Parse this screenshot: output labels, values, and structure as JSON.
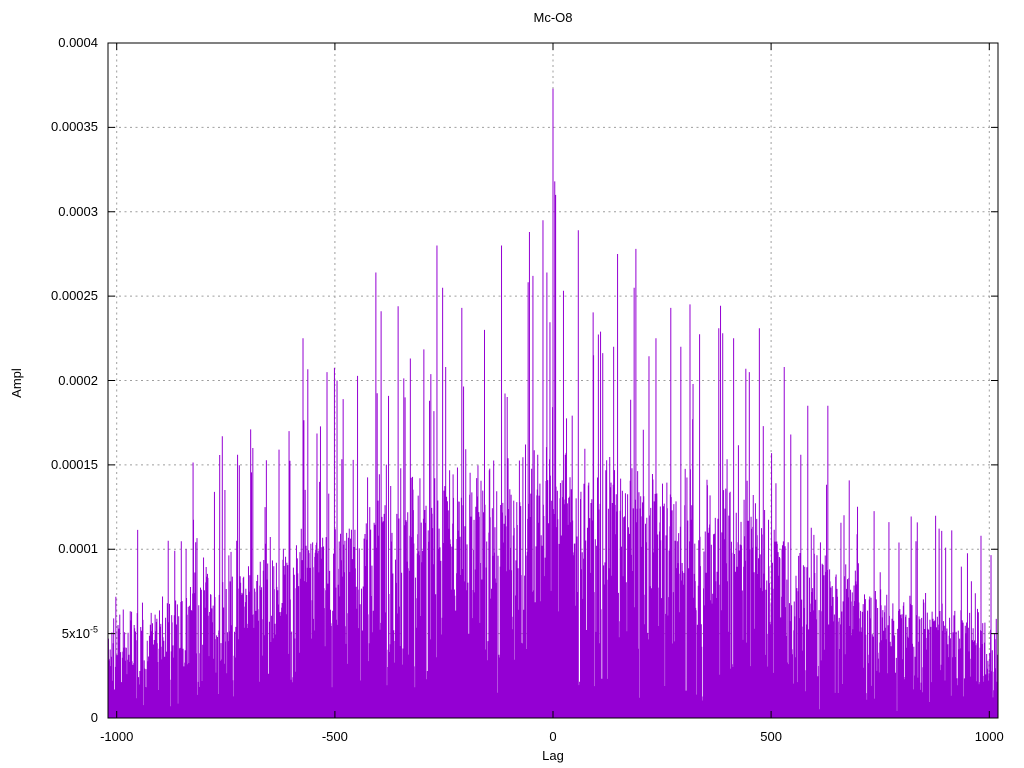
{
  "chart_data": {
    "type": "impulses",
    "title": "Mc-O8",
    "xlabel": "Lag",
    "ylabel": "Ampl",
    "xlim": [
      -1020,
      1020
    ],
    "ylim": [
      0,
      0.0004
    ],
    "grid": true,
    "legend": "none",
    "line_color": "#9400d3",
    "grid_color": "#9e9e9e",
    "frame_color": "#000000",
    "x_ticks": [
      {
        "value": -1000,
        "label": "-1000"
      },
      {
        "value": -500,
        "label": "-500"
      },
      {
        "value": 0,
        "label": "0"
      },
      {
        "value": 500,
        "label": "500"
      },
      {
        "value": 1000,
        "label": "1000"
      }
    ],
    "y_ticks": [
      {
        "value": 0,
        "label": "0"
      },
      {
        "value": 5e-05,
        "label": "5x10",
        "sup": "-5"
      },
      {
        "value": 0.0001,
        "label": "0.0001"
      },
      {
        "value": 0.00015,
        "label": "0.00015"
      },
      {
        "value": 0.0002,
        "label": "0.0002"
      },
      {
        "value": 0.00025,
        "label": "0.00025"
      },
      {
        "value": 0.0003,
        "label": "0.0003"
      },
      {
        "value": 0.00035,
        "label": "0.00035"
      },
      {
        "value": 0.0004,
        "label": "0.0004"
      }
    ],
    "n_points": 2041,
    "seed": 1337,
    "typical_envelope": [
      [
        -1020,
        5.5e-05
      ],
      [
        -900,
        6.5e-05
      ],
      [
        -800,
        8e-05
      ],
      [
        -700,
        9e-05
      ],
      [
        -600,
        0.0001
      ],
      [
        -500,
        0.00011
      ],
      [
        -400,
        0.00012
      ],
      [
        -300,
        0.000128
      ],
      [
        -200,
        0.000135
      ],
      [
        -100,
        0.00014
      ],
      [
        0,
        0.000145
      ],
      [
        100,
        0.00014
      ],
      [
        200,
        0.000135
      ],
      [
        300,
        0.00013
      ],
      [
        400,
        0.000125
      ],
      [
        500,
        0.00011
      ],
      [
        600,
        9.5e-05
      ],
      [
        700,
        8e-05
      ],
      [
        800,
        7e-05
      ],
      [
        900,
        6e-05
      ],
      [
        1020,
        5.5e-05
      ]
    ],
    "notable_peaks": [
      [
        -882,
        0.000105
      ],
      [
        -841,
        0.0001
      ],
      [
        -776,
        0.000134
      ],
      [
        -758,
        0.000167
      ],
      [
        -688,
        0.00016
      ],
      [
        -660,
        0.000125
      ],
      [
        -605,
        0.00017
      ],
      [
        -573,
        0.000225
      ],
      [
        -518,
        0.000205
      ],
      [
        -495,
        0.0002
      ],
      [
        -481,
        0.000189
      ],
      [
        -406,
        0.000264
      ],
      [
        -394,
        0.000241
      ],
      [
        -339,
        0.00019
      ],
      [
        -283,
        0.000188
      ],
      [
        -266,
        0.00028
      ],
      [
        -253,
        0.000255
      ],
      [
        -246,
        0.000208
      ],
      [
        -209,
        0.000243
      ],
      [
        -157,
        0.00023
      ],
      [
        -118,
        0.00028
      ],
      [
        -54,
        0.000288
      ],
      [
        -46,
        0.000262
      ],
      [
        -23,
        0.000295
      ],
      [
        -14,
        0.000264
      ],
      [
        0,
        0.000373
      ],
      [
        4,
        0.000318
      ],
      [
        6,
        0.00031
      ],
      [
        58,
        0.000289
      ],
      [
        93,
        0.000215
      ],
      [
        109,
        0.000229
      ],
      [
        139,
        0.00022
      ],
      [
        186,
        0.000255
      ],
      [
        190,
        0.000278
      ],
      [
        236,
        0.000225
      ],
      [
        270,
        0.000243
      ],
      [
        293,
        0.00022
      ],
      [
        320,
        0.000177
      ],
      [
        389,
        0.000228
      ],
      [
        414,
        0.000225
      ],
      [
        442,
        0.000207
      ],
      [
        450,
        0.000205
      ],
      [
        473,
        0.000231
      ],
      [
        530,
        0.000208
      ],
      [
        545,
        0.000168
      ],
      [
        568,
        0.000156
      ],
      [
        630,
        0.000185
      ],
      [
        793,
        0.000104
      ],
      [
        900,
        0.000101
      ]
    ]
  }
}
